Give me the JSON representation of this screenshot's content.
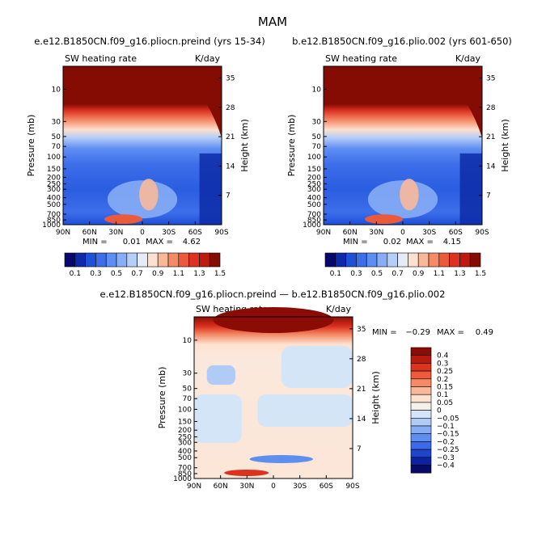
{
  "page": {
    "title": "MAM"
  },
  "chart_data": [
    {
      "type": "heatmap",
      "title": "e.e12.B1850CN.f09_g16.pliocn.preind (yrs 15-34)",
      "variable": "SW heating rate",
      "units": "K/day",
      "xlabel": "",
      "ylabel": "Pressure (mb)",
      "y2label": "Height (km)",
      "x_ticks": [
        "90N",
        "60N",
        "30N",
        "0",
        "30S",
        "60S",
        "90S"
      ],
      "y_ticks": [
        "10",
        "30",
        "50",
        "70",
        "100",
        "150",
        "200",
        "250",
        "300",
        "400",
        "500",
        "700",
        "850",
        "1000"
      ],
      "y2_ticks": [
        "35",
        "28",
        "21",
        "14",
        "7"
      ],
      "min_label": "MIN =",
      "min_value": "0.01",
      "max_label": "MAX =",
      "max_value": "4.62",
      "colorbar_levels": [
        "0.1",
        "0.3",
        "0.5",
        "0.7",
        "0.9",
        "1.1",
        "1.3",
        "1.5"
      ],
      "colorbar_colors": [
        "#08086b",
        "#0d2ba8",
        "#1e50d8",
        "#3d6eea",
        "#5e8ef2",
        "#86adf5",
        "#b5cef8",
        "#e4ecf8",
        "#fde0cf",
        "#f8b99b",
        "#f48a66",
        "#ec5a3c",
        "#dc3220",
        "#bf1a0e",
        "#850c03"
      ]
    },
    {
      "type": "heatmap",
      "title": "b.e12.B1850CN.f09_g16.plio.002 (yrs 601-650)",
      "variable": "SW heating rate",
      "units": "K/day",
      "xlabel": "",
      "ylabel": "Pressure (mb)",
      "y2label": "Height (km)",
      "x_ticks": [
        "90N",
        "60N",
        "30N",
        "0",
        "30S",
        "60S",
        "90S"
      ],
      "y_ticks": [
        "10",
        "30",
        "50",
        "70",
        "100",
        "150",
        "200",
        "250",
        "300",
        "400",
        "500",
        "700",
        "850",
        "1000"
      ],
      "y2_ticks": [
        "35",
        "28",
        "21",
        "14",
        "7"
      ],
      "min_label": "MIN =",
      "min_value": "0.02",
      "max_label": "MAX =",
      "max_value": "4.15",
      "colorbar_levels": [
        "0.1",
        "0.3",
        "0.5",
        "0.7",
        "0.9",
        "1.1",
        "1.3",
        "1.5"
      ],
      "colorbar_colors": [
        "#08086b",
        "#0d2ba8",
        "#1e50d8",
        "#3d6eea",
        "#5e8ef2",
        "#86adf5",
        "#b5cef8",
        "#e4ecf8",
        "#fde0cf",
        "#f8b99b",
        "#f48a66",
        "#ec5a3c",
        "#dc3220",
        "#bf1a0e",
        "#850c03"
      ]
    },
    {
      "type": "heatmap",
      "title": "e.e12.B1850CN.f09_g16.pliocn.preind — b.e12.B1850CN.f09_g16.plio.002",
      "variable": "SW heating rate",
      "units": "K/day",
      "xlabel": "",
      "ylabel": "Pressure (mb)",
      "y2label": "Height (km)",
      "x_ticks": [
        "90N",
        "60N",
        "30N",
        "0",
        "30S",
        "60S",
        "90S"
      ],
      "y_ticks": [
        "10",
        "30",
        "50",
        "70",
        "100",
        "150",
        "200",
        "250",
        "300",
        "400",
        "500",
        "700",
        "850",
        "1000"
      ],
      "y2_ticks": [
        "35",
        "28",
        "21",
        "14",
        "7"
      ],
      "min_label": "MIN =",
      "min_value": "−0.29",
      "max_label": "MAX =",
      "max_value": "0.49",
      "colorbar_levels": [
        "0.4",
        "0.3",
        "0.25",
        "0.2",
        "0.15",
        "0.1",
        "0.05",
        "0",
        "−0.05",
        "−0.1",
        "−0.15",
        "−0.2",
        "−0.25",
        "−0.3",
        "−0.4"
      ],
      "colorbar_colors": [
        "#8b0c04",
        "#b81a0e",
        "#dc3220",
        "#ee5a3c",
        "#f48a66",
        "#f9b89a",
        "#fde2d0",
        "#f4f0ec",
        "#d5e5f8",
        "#b0ccf6",
        "#86adf3",
        "#5e8ef0",
        "#3d6ae8",
        "#1f45cc",
        "#0d22a0",
        "#070a66"
      ]
    }
  ]
}
